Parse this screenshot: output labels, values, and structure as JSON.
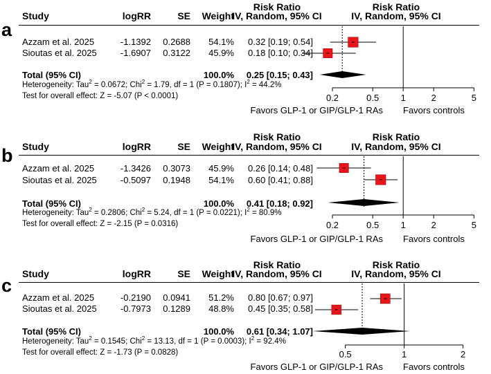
{
  "headers": {
    "study": "Study",
    "logrr": "logRR",
    "se": "SE",
    "weight": "Weight",
    "rr_line1": "Risk Ratio",
    "rr_line2": "IV, Random, 95% CI",
    "plot_line1": "Risk Ratio",
    "plot_line2": "IV, Random, 95% CI"
  },
  "panels": [
    {
      "letter": "a",
      "studies": [
        {
          "name": "Azzam et al. 2025",
          "logrr": "-1.1392",
          "se": "0.2688",
          "weight": "54.1%",
          "rr_text": "0.32 [0.19; 0.54]"
        },
        {
          "name": "Sioutas et al. 2025",
          "logrr": "-1.6907",
          "se": "0.3122",
          "weight": "45.9%",
          "rr_text": "0.18 [0.10; 0.34]"
        }
      ],
      "total": {
        "label": "Total (95% CI)",
        "weight": "100.0%",
        "rr_text": "0.25 [0.15; 0.43]"
      },
      "heterogeneity": {
        "pre": "Heterogeneity: Tau",
        "tau2": "0.0672",
        "chi_pre": "; Chi",
        "chi2_rest": " = 1.79, df = 1 (P = 0.1807); I",
        "i2": " = 44.2%"
      },
      "test": "Test for overall effect: Z = -5.07 (P < 0.0001)",
      "ticks": [
        "0.2",
        "0.5",
        "1",
        "2",
        "5"
      ],
      "favors_left": "Favors GLP-1 or GIP/GLP-1 RAs",
      "favors_right": "Favors controls"
    },
    {
      "letter": "b",
      "studies": [
        {
          "name": "Azzam et al. 2025",
          "logrr": "-1.3426",
          "se": "0.3073",
          "weight": "45.9%",
          "rr_text": "0.26 [0.14; 0.48]"
        },
        {
          "name": "Sioutas et al. 2025",
          "logrr": "-0.5097",
          "se": "0.1948",
          "weight": "54.1%",
          "rr_text": "0.60 [0.41; 0.88]"
        }
      ],
      "total": {
        "label": "Total (95% CI)",
        "weight": "100.0%",
        "rr_text": "0.41 [0.18; 0.92]"
      },
      "heterogeneity": {
        "pre": "Heterogeneity: Tau",
        "tau2": "0.2806",
        "chi_pre": "; Chi",
        "chi2_rest": " = 5.24, df = 1 (P = 0.0221); I",
        "i2": " = 80.9%"
      },
      "test": "Test for overall effect: Z = -2.15 (P = 0.0316)",
      "ticks": [
        "0.2",
        "0.5",
        "1",
        "2",
        "5"
      ],
      "favors_left": "Favors GLP-1 or GIP/GLP-1 RAs",
      "favors_right": "Favors controls"
    },
    {
      "letter": "c",
      "studies": [
        {
          "name": "Azzam et al. 2025",
          "logrr": "-0.2190",
          "se": "0.0941",
          "weight": "51.2%",
          "rr_text": "0.80 [0.67; 0.97]"
        },
        {
          "name": "Sioutas et al. 2025",
          "logrr": "-0.7973",
          "se": "0.1289",
          "weight": "48.8%",
          "rr_text": "0.45 [0.35; 0.58]"
        }
      ],
      "total": {
        "label": "Total (95% CI)",
        "weight": "100.0%",
        "rr_text": "0.61 [0.34; 1.07]"
      },
      "heterogeneity": {
        "pre": "Heterogeneity: Tau",
        "tau2": "0.1545",
        "chi_pre": "; Chi",
        "chi2_rest": " = 13.13, df = 1 (P = 0.0003); I",
        "i2": " = 92.4%"
      },
      "test": "Test for overall effect: Z = -1.73 (P = 0.0828)",
      "ticks": [
        "0.5",
        "1",
        "2"
      ],
      "favors_left": "Favors GLP-1 or GIP/GLP-1 RAs",
      "favors_right": "Favors controls"
    }
  ],
  "colors": {
    "square": "#e8151b",
    "square_border": "#8a0000",
    "diamond": "#000000",
    "lines": "#000000"
  },
  "chart_data": [
    {
      "type": "forest",
      "scale": "log",
      "xlim": [
        0.1,
        6
      ],
      "ticks": [
        0.2,
        0.5,
        1,
        2,
        5
      ],
      "studies": [
        {
          "label": "Azzam et al. 2025",
          "rr": 0.32,
          "lower": 0.19,
          "upper": 0.54,
          "weight": 54.1
        },
        {
          "label": "Sioutas et al. 2025",
          "rr": 0.18,
          "lower": 0.1,
          "upper": 0.34,
          "weight": 45.9
        }
      ],
      "pooled": {
        "rr": 0.25,
        "lower": 0.15,
        "upper": 0.43
      }
    },
    {
      "type": "forest",
      "scale": "log",
      "xlim": [
        0.1,
        6
      ],
      "ticks": [
        0.2,
        0.5,
        1,
        2,
        5
      ],
      "studies": [
        {
          "label": "Azzam et al. 2025",
          "rr": 0.26,
          "lower": 0.14,
          "upper": 0.48,
          "weight": 45.9
        },
        {
          "label": "Sioutas et al. 2025",
          "rr": 0.6,
          "lower": 0.41,
          "upper": 0.88,
          "weight": 54.1
        }
      ],
      "pooled": {
        "rr": 0.41,
        "lower": 0.18,
        "upper": 0.92
      }
    },
    {
      "type": "forest",
      "scale": "log",
      "xlim": [
        0.3,
        2.5
      ],
      "ticks": [
        0.5,
        1,
        2
      ],
      "studies": [
        {
          "label": "Azzam et al. 2025",
          "rr": 0.8,
          "lower": 0.67,
          "upper": 0.97,
          "weight": 51.2
        },
        {
          "label": "Sioutas et al. 2025",
          "rr": 0.45,
          "lower": 0.35,
          "upper": 0.58,
          "weight": 48.8
        }
      ],
      "pooled": {
        "rr": 0.61,
        "lower": 0.34,
        "upper": 1.07
      }
    }
  ]
}
